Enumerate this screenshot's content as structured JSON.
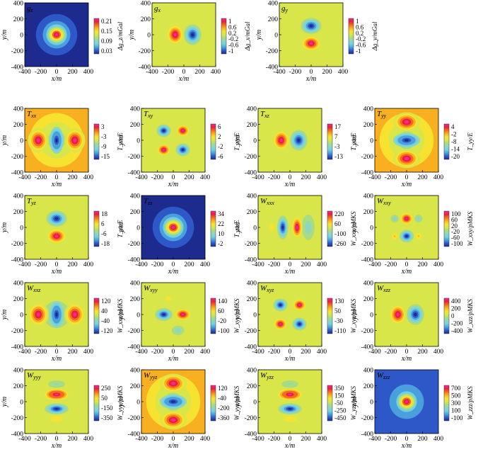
{
  "colors": {
    "scale": [
      "#1d2a8e",
      "#2e58c8",
      "#4aa0dc",
      "#70d2e0",
      "#8fd6c0",
      "#a8dc82",
      "#d8e64a",
      "#f8e230",
      "#f8b020",
      "#f46a1e",
      "#ec1e3c",
      "#ee2a9a"
    ],
    "background_field": "#86d3d7"
  },
  "chart_data": [
    {
      "type": "heatmap",
      "panel_label": "g_z",
      "pattern": "monopole-positive",
      "background_level": 0.0,
      "colorbar_ticks": [
        "0.21",
        "0.15",
        "0.09",
        "0.03"
      ],
      "colorbar_label": "Δg_z/mGal",
      "xlabel": "x/m",
      "ylabel": "y/m",
      "xticks": [
        "-400",
        "-200",
        "0",
        "200",
        "400"
      ],
      "yticks": [
        "400",
        "200",
        "0",
        "-200",
        "-400"
      ],
      "xlim": [
        -400,
        400
      ],
      "ylim": [
        -400,
        400
      ]
    },
    {
      "type": "heatmap",
      "panel_label": "g_x",
      "pattern": "dipole-x",
      "background_level": 0.5,
      "colorbar_ticks": [
        "1",
        "0.6",
        "0.2",
        "-0.2",
        "-0.6",
        "-1"
      ],
      "colorbar_label": "Δg_x/mGal",
      "xlabel": "x/m",
      "ylabel": "y/m",
      "xticks": [
        "-400",
        "-200",
        "0",
        "200",
        "400"
      ],
      "yticks": [
        "400",
        "200",
        "0",
        "-200",
        "-400"
      ],
      "xlim": [
        -400,
        400
      ],
      "ylim": [
        -400,
        400
      ]
    },
    {
      "type": "heatmap",
      "panel_label": "g_y",
      "pattern": "dipole-y",
      "background_level": 0.5,
      "colorbar_ticks": [
        "1",
        "0.6",
        "0.2",
        "-0.2",
        "-0.6",
        "-1"
      ],
      "colorbar_label": "Δg_y/mGal",
      "xlabel": "x/m",
      "ylabel": "y/m",
      "xticks": [
        "-400",
        "-200",
        "0",
        "200",
        "400"
      ],
      "yticks": [
        "400",
        "200",
        "0",
        "-200",
        "-400"
      ],
      "xlim": [
        -400,
        400
      ],
      "ylim": [
        -400,
        400
      ]
    },
    {
      "type": "heatmap",
      "panel_label": "T_xx",
      "pattern": "txx",
      "background_level": 0.7,
      "colorbar_ticks": [
        "3",
        "-3",
        "-9",
        "-15"
      ],
      "colorbar_label": "T_xx/E",
      "xlabel": "x/m",
      "ylabel": "y/m",
      "xticks": [
        "-400",
        "-200",
        "0",
        "200",
        "400"
      ],
      "yticks": [
        "400",
        "200",
        "0",
        "-200",
        "-400"
      ],
      "xlim": [
        -400,
        400
      ],
      "ylim": [
        -400,
        400
      ]
    },
    {
      "type": "heatmap",
      "panel_label": "T_xy",
      "pattern": "quad-xy",
      "background_level": 0.5,
      "colorbar_ticks": [
        "6",
        "2",
        "-2",
        "-6"
      ],
      "colorbar_label": "T_xy/E",
      "xlabel": "x/m",
      "ylabel": "y/m",
      "xticks": [
        "-400",
        "-200",
        "0",
        "200",
        "400"
      ],
      "yticks": [
        "400",
        "200",
        "0",
        "-200",
        "-400"
      ],
      "xlim": [
        -400,
        400
      ],
      "ylim": [
        -400,
        400
      ]
    },
    {
      "type": "heatmap",
      "panel_label": "T_xz",
      "pattern": "dipole-x",
      "background_level": 0.5,
      "colorbar_ticks": [
        "17",
        "7",
        "-3",
        "-13"
      ],
      "colorbar_label": "T_xz/E",
      "xlabel": "x/m",
      "ylabel": "y/m",
      "xticks": [
        "-400",
        "-200",
        "0",
        "200",
        "400"
      ],
      "yticks": [
        "400",
        "200",
        "0",
        "-200",
        "-400"
      ],
      "xlim": [
        -400,
        400
      ],
      "ylim": [
        -400,
        400
      ]
    },
    {
      "type": "heatmap",
      "panel_label": "T_yy",
      "pattern": "tyy",
      "background_level": 0.7,
      "colorbar_ticks": [
        "4",
        "-2",
        "-8",
        "-14",
        "-20"
      ],
      "colorbar_label": "T_yy/E",
      "xlabel": "x/m",
      "ylabel": "y/m",
      "xticks": [
        "-400",
        "-200",
        "0",
        "200",
        "400"
      ],
      "yticks": [
        "400",
        "200",
        "0",
        "-200",
        "-400"
      ],
      "xlim": [
        -400,
        400
      ],
      "ylim": [
        -400,
        400
      ]
    },
    {
      "type": "heatmap",
      "panel_label": "T_yz",
      "pattern": "dipole-y",
      "background_level": 0.5,
      "colorbar_ticks": [
        "18",
        "6",
        "-6",
        "-18"
      ],
      "colorbar_label": "T_yz/E",
      "xlabel": "x/m",
      "ylabel": "y/m",
      "xticks": [
        "-400",
        "-200",
        "0",
        "200",
        "400"
      ],
      "yticks": [
        "400",
        "200",
        "0",
        "-200",
        "-400"
      ],
      "xlim": [
        -400,
        400
      ],
      "ylim": [
        -400,
        400
      ]
    },
    {
      "type": "heatmap",
      "panel_label": "T_zz",
      "pattern": "monopole-positive",
      "background_level": 0.0,
      "colorbar_ticks": [
        "34",
        "22",
        "10",
        "-2"
      ],
      "colorbar_label": "T_zz/E",
      "xlabel": "x/m",
      "ylabel": "y/m",
      "xticks": [
        "-400",
        "-200",
        "0",
        "200",
        "400"
      ],
      "yticks": [
        "400",
        "200",
        "0",
        "-200",
        "-400"
      ],
      "xlim": [
        -400,
        400
      ],
      "ylim": [
        -400,
        400
      ]
    },
    {
      "type": "heatmap",
      "panel_label": "W_xxx",
      "pattern": "wxxx",
      "background_level": 0.5,
      "colorbar_ticks": [
        "220",
        "60",
        "-100",
        "-260"
      ],
      "colorbar_label": "W_xxx/pMKS",
      "xlabel": "x/m",
      "ylabel": "y/m",
      "xticks": [
        "-400",
        "-200",
        "0",
        "200",
        "400"
      ],
      "yticks": [
        "400",
        "200",
        "0",
        "-200",
        "-400"
      ],
      "xlim": [
        -400,
        400
      ],
      "ylim": [
        -400,
        400
      ]
    },
    {
      "type": "heatmap",
      "panel_label": "W_xxy",
      "pattern": "wxxy",
      "background_level": 0.5,
      "colorbar_ticks": [
        "100",
        "60",
        "20",
        "-20",
        "-60",
        "-100"
      ],
      "colorbar_label": "W_xxy/pMKS",
      "xlabel": "x/m",
      "ylabel": "y/m",
      "xticks": [
        "-400",
        "-200",
        "0",
        "200",
        "400"
      ],
      "yticks": [
        "400",
        "200",
        "0",
        "-200",
        "-400"
      ],
      "xlim": [
        -400,
        400
      ],
      "ylim": [
        -400,
        400
      ]
    },
    {
      "type": "heatmap",
      "panel_label": "W_xxz",
      "pattern": "txx",
      "background_level": 0.58,
      "colorbar_ticks": [
        "120",
        "40",
        "-40",
        "-120"
      ],
      "colorbar_label": "W_xxz/pMKS",
      "xlabel": "x/m",
      "ylabel": "y/m",
      "xticks": [
        "-400",
        "-200",
        "0",
        "200",
        "400"
      ],
      "yticks": [
        "400",
        "200",
        "0",
        "-200",
        "-400"
      ],
      "xlim": [
        -400,
        400
      ],
      "ylim": [
        -400,
        400
      ]
    },
    {
      "type": "heatmap",
      "panel_label": "W_xyy",
      "pattern": "wxyy",
      "background_level": 0.5,
      "colorbar_ticks": [
        "140",
        "60",
        "-20",
        "-100"
      ],
      "colorbar_label": "W_xyy/pMKS",
      "xlabel": "x/m",
      "ylabel": "y/m",
      "xticks": [
        "-400",
        "-200",
        "0",
        "200",
        "400"
      ],
      "yticks": [
        "400",
        "200",
        "0",
        "-200",
        "-400"
      ],
      "xlim": [
        -400,
        400
      ],
      "ylim": [
        -400,
        400
      ]
    },
    {
      "type": "heatmap",
      "panel_label": "W_xyz",
      "pattern": "quad-xy",
      "background_level": 0.5,
      "colorbar_ticks": [
        "130",
        "50",
        "-30",
        "-110"
      ],
      "colorbar_label": "W_xyz/pMKS",
      "xlabel": "x/m",
      "ylabel": "y/m",
      "xticks": [
        "-400",
        "-200",
        "0",
        "200",
        "400"
      ],
      "yticks": [
        "400",
        "200",
        "0",
        "-200",
        "-400"
      ],
      "xlim": [
        -400,
        400
      ],
      "ylim": [
        -400,
        400
      ]
    },
    {
      "type": "heatmap",
      "panel_label": "W_xzz",
      "pattern": "dipole-x",
      "background_level": 0.5,
      "colorbar_ticks": [
        "400",
        "200",
        "0",
        "-200",
        "-400"
      ],
      "colorbar_label": "W_xzz/pMKS",
      "xlabel": "x/m",
      "ylabel": "y/m",
      "xticks": [
        "-400",
        "-200",
        "0",
        "200",
        "400"
      ],
      "yticks": [
        "400",
        "200",
        "0",
        "-200",
        "-400"
      ],
      "xlim": [
        -400,
        400
      ],
      "ylim": [
        -400,
        400
      ]
    },
    {
      "type": "heatmap",
      "panel_label": "W_yyy",
      "pattern": "wyyy",
      "background_level": 0.55,
      "colorbar_ticks": [
        "250",
        "50",
        "-150",
        "-350"
      ],
      "colorbar_label": "W_yyy/pMKS",
      "xlabel": "x/m",
      "ylabel": "y/m",
      "xticks": [
        "-400",
        "-200",
        "0",
        "200",
        "400"
      ],
      "yticks": [
        "400",
        "200",
        "0",
        "-200",
        "-400"
      ],
      "xlim": [
        -400,
        400
      ],
      "ylim": [
        -400,
        400
      ]
    },
    {
      "type": "heatmap",
      "panel_label": "W_yyz",
      "pattern": "tyy",
      "background_level": 0.72,
      "colorbar_ticks": [
        "120",
        "-40",
        "-200",
        "-360"
      ],
      "colorbar_label": "W_yyz/pMKS",
      "xlabel": "x/m",
      "ylabel": "y/m",
      "xticks": [
        "-400",
        "-200",
        "0",
        "200",
        "400"
      ],
      "yticks": [
        "400",
        "200",
        "0",
        "-200",
        "-400"
      ],
      "xlim": [
        -400,
        400
      ],
      "ylim": [
        -400,
        400
      ]
    },
    {
      "type": "heatmap",
      "panel_label": "W_yzz",
      "pattern": "wyyy",
      "background_level": 0.55,
      "colorbar_ticks": [
        "350",
        "150",
        "-50",
        "-250",
        "-450"
      ],
      "colorbar_label": "W_yzz/pMKS",
      "xlabel": "x/m",
      "ylabel": "y/m",
      "xticks": [
        "-400",
        "-200",
        "0",
        "200",
        "400"
      ],
      "yticks": [
        "400",
        "200",
        "0",
        "-200",
        "-400"
      ],
      "xlim": [
        -400,
        400
      ],
      "ylim": [
        -400,
        400
      ]
    },
    {
      "type": "heatmap",
      "panel_label": "W_zzz",
      "pattern": "monopole-positive",
      "background_level": 0.05,
      "colorbar_ticks": [
        "700",
        "500",
        "300",
        "100",
        "-100"
      ],
      "colorbar_label": "W_zzz/pMKS",
      "xlabel": "x/m",
      "ylabel": "y/m",
      "xticks": [
        "-400",
        "-200",
        "0",
        "200",
        "400"
      ],
      "yticks": [
        "400",
        "200",
        "0",
        "-200",
        "-400"
      ],
      "xlim": [
        -400,
        400
      ],
      "ylim": [
        -400,
        400
      ]
    }
  ]
}
